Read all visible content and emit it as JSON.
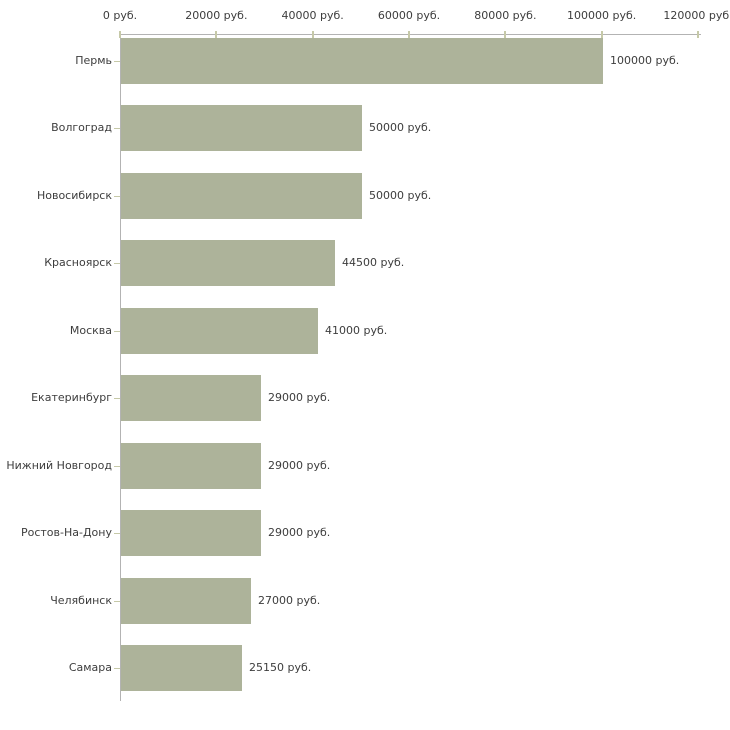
{
  "chart_data": {
    "type": "bar",
    "orientation": "horizontal",
    "title": "",
    "xlabel": "",
    "ylabel": "",
    "grid": false,
    "legend": false,
    "background": "#ffffff",
    "categories": [
      "Пермь",
      "Волгоград",
      "Новосибирск",
      "Красноярск",
      "Москва",
      "Екатеринбург",
      "Нижний Новгород",
      "Ростов-На-Дону",
      "Челябинск",
      "Самара"
    ],
    "values": [
      100000,
      50000,
      50000,
      44500,
      41000,
      29000,
      29000,
      29000,
      27000,
      25150
    ],
    "value_labels": [
      "100000 руб.",
      "50000 руб.",
      "50000 руб.",
      "44500 руб.",
      "41000 руб.",
      "29000 руб.",
      "29000 руб.",
      "29000 руб.",
      "27000 руб.",
      "25150 руб."
    ],
    "x_axis": {
      "position": "top",
      "min": 0,
      "max": 120000,
      "tick_values": [
        0,
        20000,
        40000,
        60000,
        80000,
        100000,
        120000
      ],
      "tick_labels": [
        "0 руб.",
        "20000 руб.",
        "40000 руб.",
        "60000 руб.",
        "80000 руб.",
        "100000 руб.",
        "120000 руб."
      ]
    },
    "colors": {
      "bar": "#adb39a",
      "axis_line": "#b3b3b3",
      "tick_mark": "#c6c9a8",
      "text": "#3d3d3d"
    }
  }
}
